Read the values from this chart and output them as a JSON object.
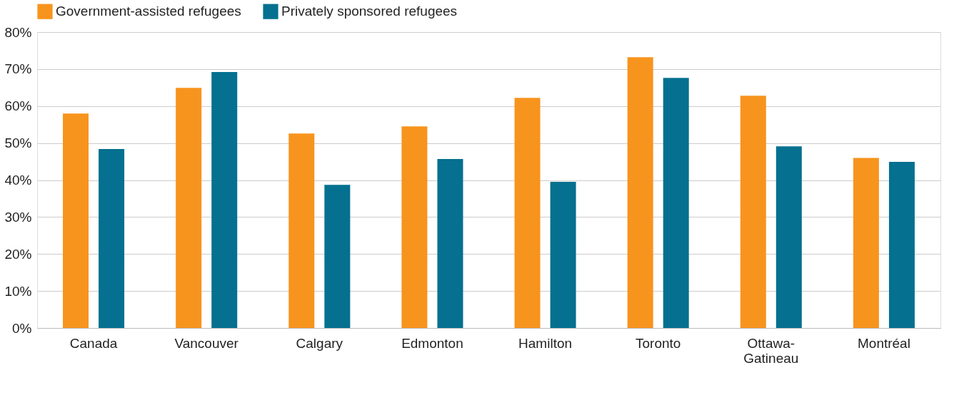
{
  "chart_data": {
    "type": "bar",
    "categories": [
      "Canada",
      "Vancouver",
      "Calgary",
      "Edmonton",
      "Hamilton",
      "Toronto",
      "Ottawa-Gatineau",
      "Montréal"
    ],
    "series": [
      {
        "name": "Government-assisted refugees",
        "color": "#f7941d",
        "values": [
          58.0,
          64.9,
          52.6,
          54.5,
          62.2,
          73.2,
          62.8,
          46.0
        ]
      },
      {
        "name": "Privately sponsored refugees",
        "color": "#05708f",
        "values": [
          48.4,
          69.2,
          38.7,
          45.7,
          39.5,
          67.6,
          49.1,
          44.9
        ]
      }
    ],
    "ylim": [
      0,
      80
    ],
    "yticks": [
      {
        "value": 0,
        "label": "0%"
      },
      {
        "value": 10,
        "label": "10%"
      },
      {
        "value": 20,
        "label": "20%"
      },
      {
        "value": 30,
        "label": "30%"
      },
      {
        "value": 40,
        "label": "40%"
      },
      {
        "value": 50,
        "label": "50%"
      },
      {
        "value": 60,
        "label": "60%"
      },
      {
        "value": 70,
        "label": "70%"
      },
      {
        "value": 80,
        "label": "80%"
      }
    ],
    "grid": "y",
    "legend": "top"
  }
}
